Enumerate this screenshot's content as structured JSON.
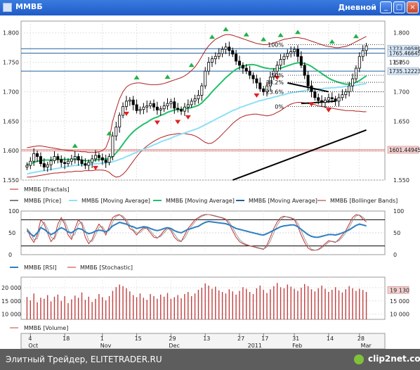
{
  "window": {
    "title": "ММВБ",
    "period": "Дневной",
    "buttons": [
      "_",
      "□",
      "×"
    ]
  },
  "colors": {
    "price": "#000000",
    "sma_fast": "#22c06a",
    "sma_slow": "#8fe0f5",
    "trend": "#000000",
    "bollinger": "#b02020",
    "fractal_up": "#22b04a",
    "fractal_down": "#e02020",
    "hline": "#2060a0",
    "support": "#e07070",
    "rsi": "#2f7fc0",
    "stoch": "#c03030",
    "volume": "#c04040"
  },
  "footer": {
    "credit": "Элитный Трейдер, ELITETRADER.RU",
    "logo": "clip2net.com"
  },
  "chart_data": [
    {
      "type": "candlestick",
      "panel": "price",
      "y_axis_ticks": [
        "1.800",
        "1.750",
        "1.700",
        "1.650",
        "1.600",
        "1.550"
      ],
      "ylim": [
        1550,
        1820
      ],
      "x_count": 100,
      "price_labels": [
        "1773.09589",
        "1765.46645",
        "1750",
        "1735.12223",
        "1601.44945"
      ],
      "fib_labels": [
        "100%",
        "50%",
        "38.2%",
        "23.6%",
        "0%"
      ],
      "fib_levels": [
        1780,
        1728,
        1716,
        1700,
        1675
      ],
      "hlines": [
        1773.1,
        1765.5,
        1735.1
      ],
      "support_line": 1601.45,
      "close": [
        1575,
        1582,
        1595,
        1590,
        1578,
        1572,
        1576,
        1583,
        1590,
        1585,
        1580,
        1578,
        1582,
        1586,
        1590,
        1584,
        1578,
        1575,
        1580,
        1586,
        1592,
        1588,
        1584,
        1580,
        1590,
        1625,
        1640,
        1660,
        1675,
        1684,
        1686,
        1678,
        1668,
        1670,
        1674,
        1676,
        1680,
        1674,
        1669,
        1671,
        1676,
        1680,
        1683,
        1672,
        1670,
        1667,
        1674,
        1678,
        1684,
        1688,
        1694,
        1710,
        1735,
        1750,
        1756,
        1760,
        1765,
        1772,
        1776,
        1770,
        1764,
        1752,
        1745,
        1740,
        1735,
        1728,
        1722,
        1715,
        1705,
        1700,
        1710,
        1725,
        1735,
        1745,
        1755,
        1760,
        1765,
        1768,
        1772,
        1760,
        1745,
        1728,
        1710,
        1700,
        1690,
        1685,
        1682,
        1686,
        1690,
        1688,
        1684,
        1690,
        1695,
        1700,
        1710,
        1722,
        1740,
        1760,
        1770,
        1778
      ],
      "sma_fast": [
        1576,
        1578,
        1580,
        1582,
        1583,
        1584,
        1584,
        1584,
        1585,
        1585,
        1585,
        1585,
        1585,
        1585,
        1585,
        1585,
        1584,
        1583,
        1583,
        1583,
        1584,
        1585,
        1586,
        1586,
        1586,
        1590,
        1596,
        1603,
        1611,
        1619,
        1626,
        1632,
        1637,
        1641,
        1645,
        1648,
        1652,
        1655,
        1657,
        1660,
        1662,
        1665,
        1667,
        1669,
        1670,
        1670,
        1671,
        1672,
        1673,
        1675,
        1677,
        1681,
        1687,
        1693,
        1700,
        1706,
        1712,
        1718,
        1724,
        1729,
        1734,
        1738,
        1741,
        1743,
        1745,
        1746,
        1746,
        1745,
        1743,
        1741,
        1740,
        1739,
        1739,
        1739,
        1740,
        1742,
        1744,
        1746,
        1748,
        1749,
        1749,
        1748,
        1746,
        1743,
        1739,
        1735,
        1731,
        1727,
        1723,
        1720,
        1718,
        1716,
        1714,
        1713,
        1713,
        1714,
        1716,
        1719,
        1723,
        1727
      ],
      "sma_slow": [
        1560,
        1562,
        1563,
        1564,
        1565,
        1566,
        1567,
        1568,
        1569,
        1570,
        1571,
        1572,
        1573,
        1574,
        1575,
        1575,
        1576,
        1576,
        1577,
        1577,
        1578,
        1578,
        1579,
        1579,
        1580,
        1581,
        1583,
        1585,
        1587,
        1590,
        1592,
        1595,
        1597,
        1600,
        1602,
        1605,
        1607,
        1610,
        1612,
        1615,
        1617,
        1619,
        1621,
        1624,
        1626,
        1628,
        1630,
        1632,
        1634,
        1636,
        1638,
        1641,
        1644,
        1647,
        1650,
        1653,
        1656,
        1659,
        1662,
        1665,
        1668,
        1670,
        1673,
        1675,
        1677,
        1679,
        1681,
        1683,
        1685,
        1686,
        1688,
        1689,
        1691,
        1692,
        1694,
        1695,
        1697,
        1698,
        1699,
        1700,
        1701,
        1702,
        1703,
        1703,
        1704,
        1705,
        1705,
        1706,
        1706,
        1707,
        1707,
        1708,
        1708,
        1709,
        1709,
        1710,
        1711,
        1712,
        1713,
        1714
      ],
      "bollinger_upper": [
        1605,
        1606,
        1607,
        1608,
        1608,
        1607,
        1606,
        1605,
        1604,
        1603,
        1602,
        1601,
        1600,
        1600,
        1599,
        1599,
        1598,
        1598,
        1597,
        1597,
        1597,
        1598,
        1600,
        1605,
        1620,
        1650,
        1670,
        1688,
        1700,
        1708,
        1712,
        1714,
        1715,
        1715,
        1714,
        1713,
        1712,
        1712,
        1712,
        1713,
        1714,
        1716,
        1718,
        1720,
        1722,
        1724,
        1727,
        1731,
        1736,
        1742,
        1750,
        1760,
        1770,
        1778,
        1784,
        1789,
        1792,
        1795,
        1797,
        1797,
        1796,
        1794,
        1792,
        1790,
        1788,
        1786,
        1784,
        1782,
        1781,
        1780,
        1780,
        1781,
        1783,
        1785,
        1787,
        1789,
        1790,
        1791,
        1792,
        1792,
        1791,
        1790,
        1788,
        1786,
        1784,
        1782,
        1780,
        1778,
        1777,
        1776,
        1775,
        1775,
        1776,
        1777,
        1779,
        1782,
        1785,
        1788,
        1791,
        1794
      ],
      "bollinger_lower": [
        1555,
        1555,
        1556,
        1557,
        1558,
        1559,
        1560,
        1561,
        1562,
        1562,
        1563,
        1563,
        1564,
        1564,
        1565,
        1565,
        1565,
        1566,
        1566,
        1566,
        1567,
        1567,
        1567,
        1566,
        1563,
        1558,
        1555,
        1556,
        1560,
        1566,
        1574,
        1582,
        1590,
        1597,
        1603,
        1608,
        1612,
        1616,
        1619,
        1622,
        1624,
        1626,
        1627,
        1628,
        1629,
        1629,
        1629,
        1628,
        1627,
        1625,
        1622,
        1618,
        1614,
        1612,
        1613,
        1617,
        1622,
        1628,
        1634,
        1640,
        1646,
        1651,
        1655,
        1658,
        1660,
        1661,
        1662,
        1662,
        1661,
        1660,
        1659,
        1660,
        1662,
        1665,
        1668,
        1672,
        1676,
        1679,
        1681,
        1682,
        1682,
        1681,
        1680,
        1679,
        1678,
        1676,
        1675,
        1674,
        1673,
        1672,
        1671,
        1670,
        1669,
        1668,
        1668,
        1668,
        1667,
        1667,
        1666,
        1666
      ],
      "fractals_up": [
        14,
        24,
        32,
        41,
        48,
        54,
        58,
        64,
        69,
        74,
        79,
        89,
        96
      ],
      "fractals_down": [
        20,
        29,
        38,
        44,
        47,
        67,
        73,
        83,
        88
      ],
      "trendlines": [
        {
          "i1": 60,
          "p1": 1550,
          "i2": 99,
          "p2": 1635
        },
        {
          "i1": 76,
          "p1": 1715,
          "i2": 88,
          "p2": 1700
        },
        {
          "i1": 80,
          "p1": 1680,
          "i2": 90,
          "p2": 1684
        }
      ],
      "legend": [
        "ММВБ [Fractals]",
        "ММВБ [Price]",
        "ММВБ [Moving Average]",
        "ММВБ [Moving Average]",
        "ММВБ [Moving Average]",
        "ММВБ [Bollinger Bands]"
      ]
    },
    {
      "type": "line",
      "panel": "oscillators",
      "ylim": [
        0,
        100
      ],
      "y_axis_ticks": [
        "100",
        "50",
        "0"
      ],
      "y_axis_ticks_right": [
        "100",
        "50",
        "0"
      ],
      "levels": [
        80,
        20
      ],
      "series": [
        {
          "name": "ММВБ [RSI]",
          "values": [
            55,
            48,
            42,
            50,
            62,
            58,
            52,
            46,
            50,
            57,
            62,
            58,
            52,
            50,
            56,
            60,
            58,
            52,
            48,
            50,
            54,
            56,
            55,
            52,
            58,
            66,
            70,
            74,
            72,
            70,
            66,
            64,
            60,
            62,
            64,
            63,
            60,
            57,
            55,
            57,
            60,
            62,
            60,
            55,
            52,
            50,
            54,
            58,
            60,
            63,
            65,
            70,
            74,
            76,
            75,
            74,
            73,
            72,
            71,
            68,
            64,
            60,
            58,
            56,
            54,
            52,
            50,
            48,
            46,
            45,
            48,
            52,
            56,
            60,
            64,
            66,
            67,
            68,
            68,
            64,
            58,
            52,
            46,
            42,
            40,
            40,
            42,
            44,
            46,
            46,
            45,
            47,
            50,
            53,
            57,
            62,
            67,
            70,
            68,
            66
          ]
        },
        {
          "name": "ММВБ [Stochastic]",
          "values": [
            60,
            40,
            28,
            45,
            80,
            70,
            50,
            30,
            40,
            70,
            85,
            70,
            45,
            35,
            60,
            80,
            70,
            40,
            25,
            35,
            55,
            70,
            60,
            45,
            65,
            85,
            90,
            92,
            85,
            75,
            60,
            55,
            45,
            55,
            62,
            60,
            50,
            40,
            38,
            45,
            55,
            62,
            55,
            40,
            32,
            30,
            45,
            60,
            70,
            80,
            85,
            90,
            92,
            92,
            90,
            88,
            86,
            84,
            80,
            70,
            55,
            40,
            30,
            25,
            22,
            20,
            18,
            16,
            14,
            12,
            22,
            40,
            60,
            75,
            85,
            88,
            86,
            84,
            80,
            65,
            45,
            28,
            15,
            10,
            10,
            12,
            18,
            25,
            32,
            30,
            28,
            35,
            45,
            55,
            70,
            85,
            92,
            90,
            82,
            75
          ]
        }
      ],
      "legend": [
        "ММВБ [RSI]",
        "ММВБ [Stochastic]"
      ]
    },
    {
      "type": "bar",
      "panel": "volume",
      "ylim": [
        8000,
        24000
      ],
      "y_axis_ticks": [
        "20 000",
        "15 000",
        "10 000"
      ],
      "y_axis_ticks_right": [
        "19 130",
        "15 000",
        "10 000"
      ],
      "values": [
        16500,
        15200,
        17800,
        14500,
        16200,
        15800,
        17200,
        14800,
        16600,
        17400,
        15000,
        16800,
        14200,
        15600,
        17000,
        16200,
        18200,
        15400,
        16600,
        14600,
        15800,
        17600,
        16400,
        15200,
        16800,
        18800,
        20200,
        21200,
        20600,
        19800,
        18600,
        17200,
        16400,
        17800,
        16200,
        15400,
        17600,
        16800,
        15800,
        17400,
        16600,
        18000,
        15800,
        16400,
        17200,
        16000,
        17600,
        18400,
        16800,
        17800,
        19200,
        20000,
        21600,
        20800,
        19600,
        20400,
        19000,
        18400,
        17800,
        19400,
        18600,
        17400,
        18800,
        20200,
        19600,
        18400,
        17600,
        19800,
        20800,
        19200,
        18000,
        19400,
        20600,
        21800,
        20200,
        19800,
        21200,
        20400,
        19600,
        18800,
        20000,
        21400,
        20600,
        19400,
        18600,
        19800,
        20800,
        19600,
        18400,
        19200,
        20200,
        19000,
        18200,
        19400,
        20600,
        19800,
        18800,
        19600,
        19130,
        18400
      ],
      "legend": [
        "ММВБ [Volume]"
      ]
    },
    {
      "type": "axis",
      "panel": "dates",
      "day_labels": [
        {
          "label": "4",
          "i": 1
        },
        {
          "label": "18",
          "i": 11
        },
        {
          "label": "1",
          "i": 22
        },
        {
          "label": "15",
          "i": 32
        },
        {
          "label": "29",
          "i": 42
        },
        {
          "label": "13",
          "i": 52
        },
        {
          "label": "27",
          "i": 62
        },
        {
          "label": "17",
          "i": 69
        },
        {
          "label": "31",
          "i": 78
        },
        {
          "label": "14",
          "i": 88
        },
        {
          "label": "28",
          "i": 97
        }
      ],
      "month_labels": [
        {
          "label": "Oct",
          "i": 1
        },
        {
          "label": "Nov",
          "i": 22
        },
        {
          "label": "Dec",
          "i": 42
        },
        {
          "label": "2011",
          "i": 65
        },
        {
          "label": "Feb",
          "i": 78
        },
        {
          "label": "Mar",
          "i": 98
        }
      ]
    }
  ]
}
